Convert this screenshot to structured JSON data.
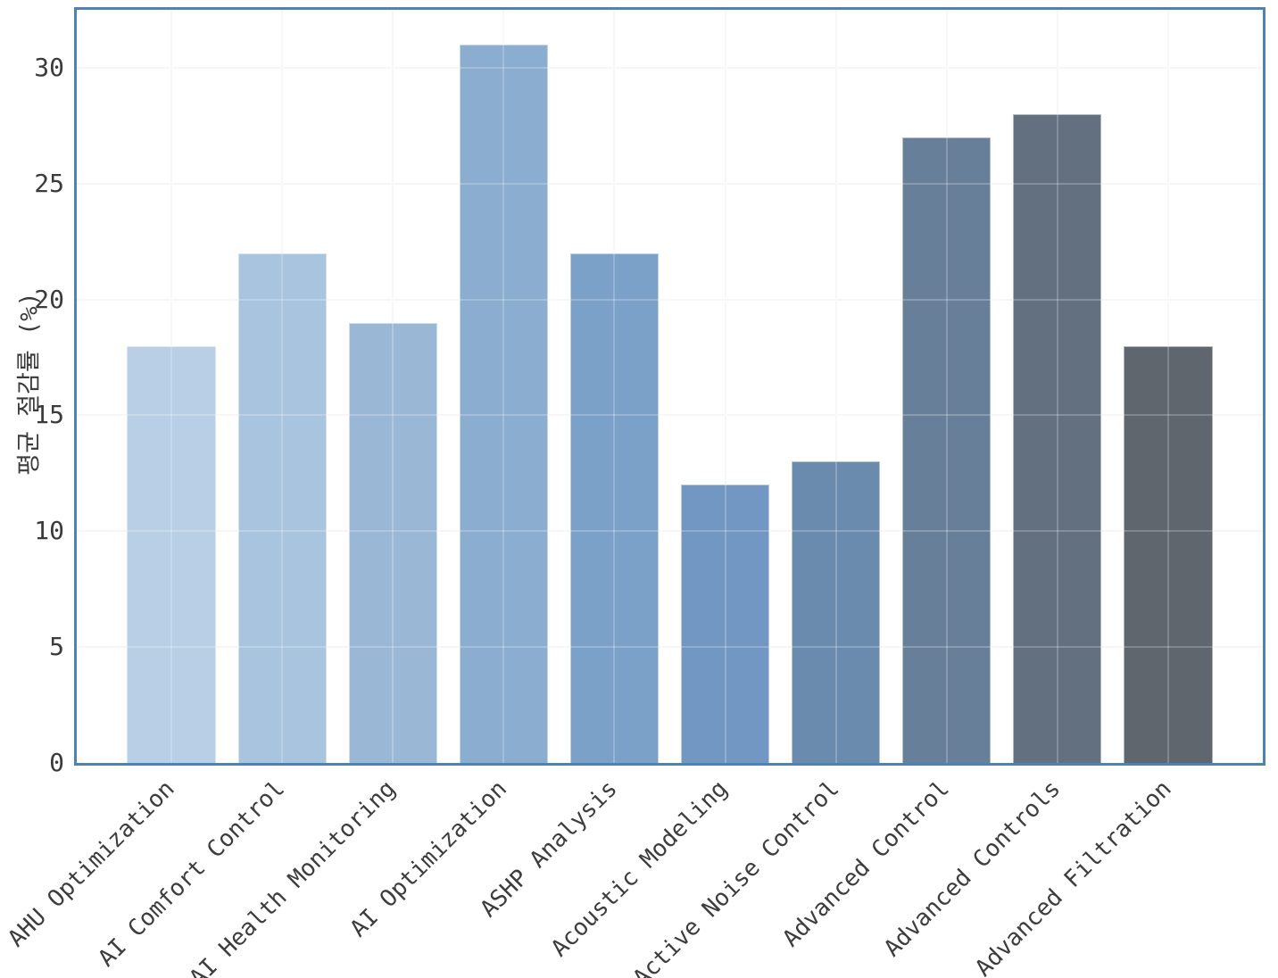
{
  "chart_data": {
    "type": "bar",
    "title": "",
    "categories": [
      "AHU Optimization",
      "AI Comfort Control",
      "AI Health Monitoring",
      "AI Optimization",
      "ASHP Analysis",
      "Acoustic Modeling",
      "Active Noise Control",
      "Advanced Control",
      "Advanced Controls",
      "Advanced Filtration"
    ],
    "values": [
      18,
      22,
      19,
      31,
      22,
      12,
      13,
      27,
      28,
      18
    ],
    "bar_colors": [
      "#b9cfe5",
      "#a9c4de",
      "#9ab8d6",
      "#8aadd0",
      "#7ba1c9",
      "#7297c3",
      "#6b8bae",
      "#687f99",
      "#63707f",
      "#5f666d"
    ],
    "xlabel": "",
    "ylabel": "평균 절감률 (%)",
    "yticks": [
      0,
      5,
      10,
      15,
      20,
      25,
      30
    ],
    "ylim": [
      0,
      32.5
    ],
    "grid": "on",
    "legend": "none"
  },
  "style": {
    "axis_border_color": "#4e82b0",
    "grid_color": "#f6f1f6",
    "tick_label_color": "#3b3b3b",
    "bar_edge_color": "rgba(255,255,255,0.5)",
    "background": "#ffffff"
  }
}
